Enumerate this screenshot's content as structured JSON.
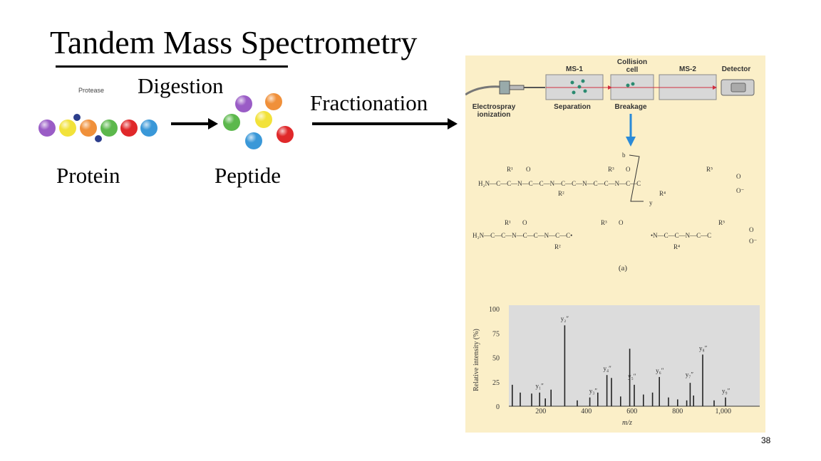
{
  "slide": {
    "title": "Tandem Mass Spectrometry",
    "page_number": "38"
  },
  "workflow": {
    "protease_label": "Protease",
    "digestion_label": "Digestion",
    "fractionation_label": "Fractionation",
    "protein_label": "Protein",
    "peptide_label": "Peptide",
    "bead_colors": [
      "#9a5cc6",
      "#f2e23a",
      "#f0903a",
      "#5cb84c",
      "#e0282a",
      "#3a98d8"
    ],
    "protease_color": "#2c3e8c"
  },
  "instrument": {
    "stages": [
      {
        "name": "MS-1",
        "caption": "Separation"
      },
      {
        "name": "Collision\ncell",
        "caption": "Breakage"
      },
      {
        "name": "MS-2",
        "caption": ""
      },
      {
        "name": "Detector",
        "caption": ""
      }
    ],
    "source_caption": "Electrospray\nionization",
    "panel_label": "(a)",
    "fragment_labels": [
      "b",
      "y"
    ]
  },
  "chart_data": {
    "type": "bar",
    "ylabel": "Relative intensity (%)",
    "xlabel": "m/z",
    "xlim": [
      60,
      1160
    ],
    "ylim": [
      0,
      100
    ],
    "xticks": [
      200,
      400,
      600,
      800,
      1000
    ],
    "xtick_labels": [
      "200",
      "400",
      "600",
      "800",
      "1,000"
    ],
    "yticks": [
      0,
      25,
      50,
      75,
      100
    ],
    "yticks_labels": [
      "0",
      "25",
      "50",
      "75",
      "100"
    ],
    "peaks": [
      {
        "mz": 75,
        "intensity": 22
      },
      {
        "mz": 110,
        "intensity": 14
      },
      {
        "mz": 160,
        "intensity": 13
      },
      {
        "mz": 195,
        "intensity": 14
      },
      {
        "mz": 220,
        "intensity": 8
      },
      {
        "mz": 245,
        "intensity": 17
      },
      {
        "mz": 305,
        "intensity": 83
      },
      {
        "mz": 360,
        "intensity": 6
      },
      {
        "mz": 415,
        "intensity": 9
      },
      {
        "mz": 450,
        "intensity": 14
      },
      {
        "mz": 490,
        "intensity": 32
      },
      {
        "mz": 510,
        "intensity": 29
      },
      {
        "mz": 550,
        "intensity": 10
      },
      {
        "mz": 590,
        "intensity": 59
      },
      {
        "mz": 610,
        "intensity": 22
      },
      {
        "mz": 650,
        "intensity": 12
      },
      {
        "mz": 690,
        "intensity": 14
      },
      {
        "mz": 720,
        "intensity": 30
      },
      {
        "mz": 760,
        "intensity": 9
      },
      {
        "mz": 800,
        "intensity": 7
      },
      {
        "mz": 840,
        "intensity": 6
      },
      {
        "mz": 855,
        "intensity": 24
      },
      {
        "mz": 870,
        "intensity": 11
      },
      {
        "mz": 910,
        "intensity": 53
      },
      {
        "mz": 960,
        "intensity": 6
      },
      {
        "mz": 1010,
        "intensity": 9
      }
    ],
    "annotations": [
      {
        "text": "y₂″",
        "mz": 305,
        "intensity": 86
      },
      {
        "text": "y₈″",
        "mz": 912,
        "intensity": 56
      },
      {
        "text": "y₄″",
        "mz": 492,
        "intensity": 35
      },
      {
        "text": "y₅″",
        "mz": 600,
        "intensity": 27
      },
      {
        "text": "y₆″",
        "mz": 722,
        "intensity": 33
      },
      {
        "text": "y₇″",
        "mz": 852,
        "intensity": 29
      },
      {
        "text": "y₁″",
        "mz": 195,
        "intensity": 17
      },
      {
        "text": "y₃″",
        "mz": 430,
        "intensity": 12
      },
      {
        "text": "y₉″",
        "mz": 1012,
        "intensity": 12
      }
    ]
  }
}
